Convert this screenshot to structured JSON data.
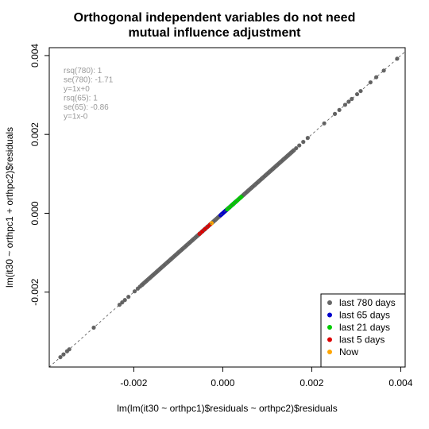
{
  "chart_data": {
    "type": "scatter",
    "title_lines": [
      "Orthogonal independent variables do not need",
      "mutual influence adjustment"
    ],
    "xlabel": "lm(lm(it30 ~ orthpc1)$residuals ~ orthpc2)$residuals",
    "ylabel": "lm(it30 ~ orthpc1 + orthpc2)$residuals",
    "xlim": [
      -0.0039,
      0.0041
    ],
    "ylim": [
      -0.0039,
      0.0042
    ],
    "x_ticks": [
      -0.002,
      0.0,
      0.002,
      0.004
    ],
    "x_tick_labels": [
      "-0.002",
      "0.000",
      "0.002",
      "0.004"
    ],
    "y_ticks": [
      -0.002,
      0.0,
      0.002,
      0.004
    ],
    "y_tick_labels": [
      "-0.002",
      "0.000",
      "0.002",
      "0.004"
    ],
    "grid": false,
    "legend_position": "bottom-right",
    "stats_text": [
      "rsq(780): 1",
      "se(780): -1.71",
      "y=1x+0",
      "rsq(65): 1",
      "se(65): -0.86",
      "y=1x-0"
    ],
    "reference_line": {
      "slope": 1,
      "intercept": 0,
      "style": "dashed"
    },
    "series": [
      {
        "name": "last 780 days",
        "color": "#666666",
        "x_range": [
          -0.00365,
          0.00392
        ],
        "points": [
          [
            -0.00365,
            -0.00365
          ],
          [
            -0.00358,
            -0.00358
          ],
          [
            -0.0035,
            -0.0035
          ],
          [
            -0.00345,
            -0.00345
          ],
          [
            -0.0029,
            -0.0029
          ],
          [
            -0.00232,
            -0.00232
          ],
          [
            -0.00226,
            -0.00226
          ],
          [
            -0.0022,
            -0.0022
          ],
          [
            -0.00212,
            -0.00212
          ],
          [
            -0.00198,
            -0.00198
          ],
          [
            -0.00191,
            -0.00191
          ],
          [
            -0.00186,
            -0.00186
          ],
          [
            -0.00182,
            -0.00182
          ],
          [
            0.0016,
            0.0016
          ],
          [
            0.00165,
            0.00165
          ],
          [
            0.00172,
            0.00172
          ],
          [
            0.00181,
            0.00181
          ],
          [
            0.00191,
            0.00191
          ],
          [
            0.00228,
            0.00228
          ],
          [
            0.00252,
            0.00252
          ],
          [
            0.00262,
            0.00262
          ],
          [
            0.00275,
            0.00275
          ],
          [
            0.00283,
            0.00283
          ],
          [
            0.0029,
            0.0029
          ],
          [
            0.00302,
            0.00302
          ],
          [
            0.0031,
            0.0031
          ],
          [
            0.00332,
            0.00332
          ],
          [
            0.00345,
            0.00345
          ],
          [
            0.00362,
            0.00362
          ],
          [
            0.00392,
            0.00392
          ]
        ],
        "dense_range": [
          -0.00182,
          0.0016
        ],
        "dense_count": 330
      },
      {
        "name": "last 65 days",
        "color": "#0000cc",
        "x_range": [
          -5e-05,
          0.0003
        ],
        "count": 22
      },
      {
        "name": "last 21 days",
        "color": "#00cc00",
        "x_range": [
          0.0001,
          0.00042
        ],
        "count": 14
      },
      {
        "name": "last 5 days",
        "color": "#dd0000",
        "x_range": [
          -0.00052,
          -0.00028
        ],
        "count": 5
      },
      {
        "name": "Now",
        "color": "#ffa500",
        "points": [
          [
            -0.00025,
            -0.00025
          ]
        ]
      }
    ]
  }
}
